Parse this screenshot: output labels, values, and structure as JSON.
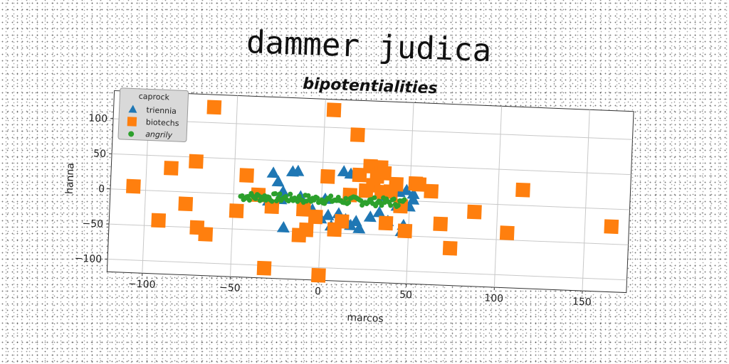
{
  "chart_data": {
    "type": "scatter",
    "suptitle": "dammer judica",
    "title": "bipotentialities",
    "xlabel": "marcos",
    "ylabel": "hanna",
    "xlim": [
      -120,
      175
    ],
    "ylim": [
      -118,
      140
    ],
    "xticks": [
      -100,
      -50,
      0,
      50,
      100,
      150
    ],
    "yticks": [
      -100,
      -50,
      0,
      50,
      100
    ],
    "xtick_labels": [
      "−100",
      "−50",
      "0",
      "50",
      "100",
      "150"
    ],
    "ytick_labels": [
      "−100",
      "−50",
      "0",
      "50",
      "100"
    ],
    "grid": true,
    "legend": {
      "title": "caprock",
      "placement": "top-left"
    },
    "series": [
      {
        "name": "triennia",
        "marker": "triangle",
        "color": "#1f77b4",
        "points": [
          [
            -28,
            32
          ],
          [
            -17,
            35
          ],
          [
            -14,
            36
          ],
          [
            -25,
            20
          ],
          [
            -22,
            6
          ],
          [
            -23,
            -5
          ],
          [
            -21,
            -45
          ],
          [
            -10,
            -20
          ],
          [
            -5,
            -18
          ],
          [
            0,
            -30
          ],
          [
            4,
            -25
          ],
          [
            6,
            -40
          ],
          [
            8,
            -45
          ],
          [
            12,
            38
          ],
          [
            16,
            35
          ],
          [
            10,
            -22
          ],
          [
            14,
            -30
          ],
          [
            17,
            -38
          ],
          [
            22,
            -42
          ],
          [
            20,
            -32
          ],
          [
            28,
            -25
          ],
          [
            33,
            -18
          ],
          [
            38,
            -30
          ],
          [
            46,
            -44
          ],
          [
            47,
            -35
          ],
          [
            43,
            -8
          ],
          [
            50,
            -8
          ],
          [
            52,
            2
          ],
          [
            44,
            12
          ],
          [
            48,
            15
          ],
          [
            52,
            10
          ],
          [
            -30,
            -8
          ],
          [
            -12,
            0
          ],
          [
            2,
            -2
          ],
          [
            35,
            5
          ]
        ]
      },
      {
        "name": "biotechs",
        "marker": "square",
        "color": "#ff7f0e",
        "points": [
          [
            -107,
            5
          ],
          [
            -92,
            -42
          ],
          [
            -86,
            33
          ],
          [
            -77,
            -17
          ],
          [
            -72,
            44
          ],
          [
            -70,
            -50
          ],
          [
            -65,
            -59
          ],
          [
            -63,
            122
          ],
          [
            -48,
            -24
          ],
          [
            -43,
            27
          ],
          [
            -36,
            0
          ],
          [
            -31,
            -104
          ],
          [
            -28,
            -16
          ],
          [
            -10,
            -18
          ],
          [
            -12,
            -55
          ],
          [
            -8,
            -47
          ],
          [
            -3,
            -28
          ],
          [
            0,
            -111
          ],
          [
            3,
            30
          ],
          [
            5,
            125
          ],
          [
            8,
            -45
          ],
          [
            12,
            -33
          ],
          [
            16,
            5
          ],
          [
            19,
            91
          ],
          [
            21,
            34
          ],
          [
            25,
            12
          ],
          [
            27,
            47
          ],
          [
            31,
            33
          ],
          [
            33,
            46
          ],
          [
            35,
            38
          ],
          [
            37,
            -33
          ],
          [
            39,
            12
          ],
          [
            42,
            23
          ],
          [
            45,
            -8
          ],
          [
            48,
            -43
          ],
          [
            53,
            25
          ],
          [
            55,
            24
          ],
          [
            62,
            15
          ],
          [
            68,
            -31
          ],
          [
            74,
            -65
          ],
          [
            87,
            -12
          ],
          [
            106,
            -40
          ],
          [
            114,
            22
          ],
          [
            165,
            -25
          ],
          [
            29,
            20
          ],
          [
            34,
            11
          ]
        ]
      },
      {
        "name": "angrily",
        "marker": "circle",
        "color": "#2ca02c",
        "x_range": [
          -46,
          47
        ],
        "y_range": [
          -9,
          3
        ],
        "count": 110
      }
    ]
  }
}
